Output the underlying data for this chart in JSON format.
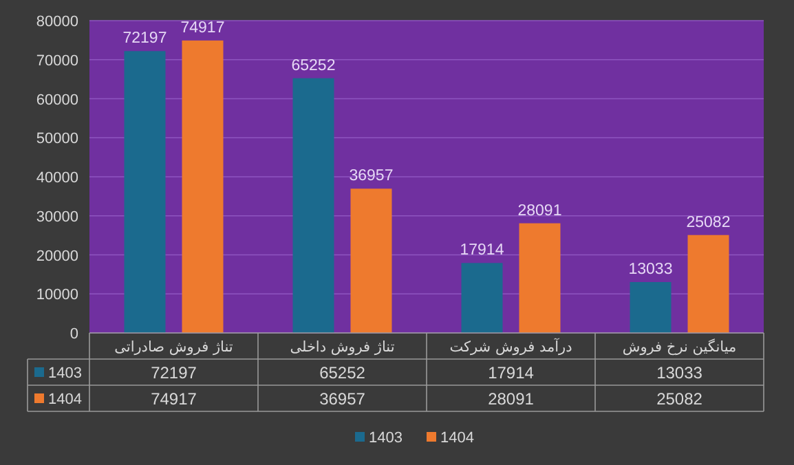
{
  "chart_data": {
    "type": "bar",
    "categories": [
      "تناژ فروش صادراتی",
      "تناژ فروش داخلی",
      "درآمد فروش شرکت",
      "میانگین نرخ فروش"
    ],
    "series": [
      {
        "name": "1403",
        "color": "#1b6a8e",
        "values": [
          72197,
          65252,
          17914,
          13033
        ],
        "value_labels": [
          "72197",
          "65252",
          "17914",
          "13033"
        ]
      },
      {
        "name": "1404",
        "color": "#ee7a2e",
        "values": [
          74917,
          36957,
          28091,
          25082
        ],
        "value_labels": [
          "74917",
          "36957",
          "28091",
          "25082"
        ]
      }
    ],
    "ylim": [
      0,
      80000
    ],
    "yticks": [
      0,
      10000,
      20000,
      30000,
      40000,
      50000,
      60000,
      70000,
      80000
    ],
    "annotations": [
      "72197",
      "65252",
      "17914",
      "13033",
      "74917",
      "36957",
      "28091",
      "25082"
    ],
    "grid": "y",
    "legend": "bottom",
    "data_labels": true
  }
}
